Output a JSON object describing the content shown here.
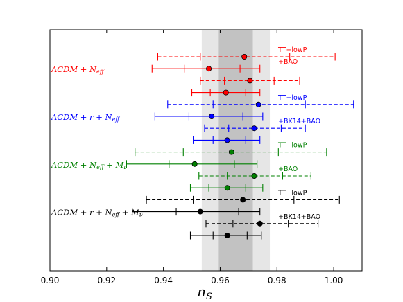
{
  "chart_data": {
    "type": "scatter",
    "title": "",
    "xlabel": "n_S",
    "ylabel": "",
    "xlim": [
      0.9,
      1.01
    ],
    "xticks": [
      "0.90",
      "0.92",
      "0.94",
      "0.96",
      "0.98",
      "1.00"
    ],
    "tick_values": [
      0.9,
      0.92,
      0.94,
      0.96,
      0.98,
      1.0
    ],
    "bands": {
      "outer": [
        0.9535,
        0.9775
      ],
      "inner": [
        0.9595,
        0.9715
      ]
    },
    "groups": [
      {
        "name": "ΛCDM + N_eff",
        "label_main": "ΛCDM + N",
        "label_sub": "eff",
        "label_tail": "",
        "color": "#ff0000",
        "datasets": [
          {
            "label": "TT+lowP",
            "center": 0.9685,
            "sigma1": [
              0.953,
              0.9845
            ],
            "sigma2": [
              0.938,
              1.0005
            ],
            "style": "dashed"
          },
          {
            "label": "+BAO",
            "center": 0.956,
            "sigma1": [
              0.9475,
              0.967
            ],
            "sigma2": [
              0.936,
              0.974
            ],
            "style": "solid"
          },
          {
            "label": "",
            "center": 0.9705,
            "sigma1": [
              0.9615,
              0.979
            ],
            "sigma2": [
              0.953,
              0.988
            ],
            "style": "dashed"
          },
          {
            "label": "",
            "center": 0.962,
            "sigma1": [
              0.9565,
              0.969
            ],
            "sigma2": [
              0.95,
              0.974
            ],
            "style": "solid"
          }
        ]
      },
      {
        "name": "ΛCDM + r + N_eff",
        "label_main": "ΛCDM + r + N",
        "label_sub": "eff",
        "label_tail": "",
        "color": "#0000ff",
        "datasets": [
          {
            "label": "TT+lowP",
            "center": 0.9735,
            "sigma1": [
              0.9575,
              0.99
            ],
            "sigma2": [
              0.9415,
              1.007
            ],
            "style": "dashed"
          },
          {
            "label": "",
            "center": 0.957,
            "sigma1": [
              0.949,
              0.968
            ],
            "sigma2": [
              0.937,
              0.975
            ],
            "style": "solid"
          },
          {
            "label": "+BK14+BAO",
            "center": 0.972,
            "sigma1": [
              0.963,
              0.9815
            ],
            "sigma2": [
              0.9545,
              0.99
            ],
            "style": "dashed"
          },
          {
            "label": "",
            "center": 0.9625,
            "sigma1": [
              0.9575,
              0.969
            ],
            "sigma2": [
              0.9505,
              0.974
            ],
            "style": "solid"
          }
        ]
      },
      {
        "name": "ΛCDM + N_eff + M_ν",
        "label_main": "ΛCDM + N",
        "label_sub": "eff",
        "label_tail": " + M_ν",
        "color": "#008000",
        "datasets": [
          {
            "label": "TT+lowP",
            "center": 0.964,
            "sigma1": [
              0.947,
              0.9805
            ],
            "sigma2": [
              0.93,
              0.9975
            ],
            "style": "dashed"
          },
          {
            "label": "",
            "center": 0.951,
            "sigma1": [
              0.942,
              0.965
            ],
            "sigma2": [
              0.927,
              0.973
            ],
            "style": "solid"
          },
          {
            "label": "+BAO",
            "center": 0.972,
            "sigma1": [
              0.9625,
              0.982
            ],
            "sigma2": [
              0.9525,
              0.992
            ],
            "style": "dashed"
          },
          {
            "label": "",
            "center": 0.9625,
            "sigma1": [
              0.956,
              0.969
            ],
            "sigma2": [
              0.9495,
              0.975
            ],
            "style": "solid"
          }
        ]
      },
      {
        "name": "ΛCDM + r + N_eff + M_ν",
        "label_main": "ΛCDM + r + N",
        "label_sub": "eff",
        "label_tail": " + M_ν",
        "color": "#000000",
        "datasets": [
          {
            "label": "TT+lowP",
            "center": 0.968,
            "sigma1": [
              0.9505,
              0.986
            ],
            "sigma2": [
              0.934,
              1.002
            ],
            "style": "dashed"
          },
          {
            "label": "",
            "center": 0.953,
            "sigma1": [
              0.9445,
              0.9665
            ],
            "sigma2": [
              0.929,
              0.974
            ],
            "style": "solid"
          },
          {
            "label": "+BK14+BAO",
            "center": 0.974,
            "sigma1": [
              0.9645,
              0.984
            ],
            "sigma2": [
              0.955,
              0.9945
            ],
            "style": "dashed"
          },
          {
            "label": "",
            "center": 0.9625,
            "sigma1": [
              0.9575,
              0.9695
            ],
            "sigma2": [
              0.9495,
              0.9745
            ],
            "style": "solid"
          }
        ]
      }
    ]
  }
}
